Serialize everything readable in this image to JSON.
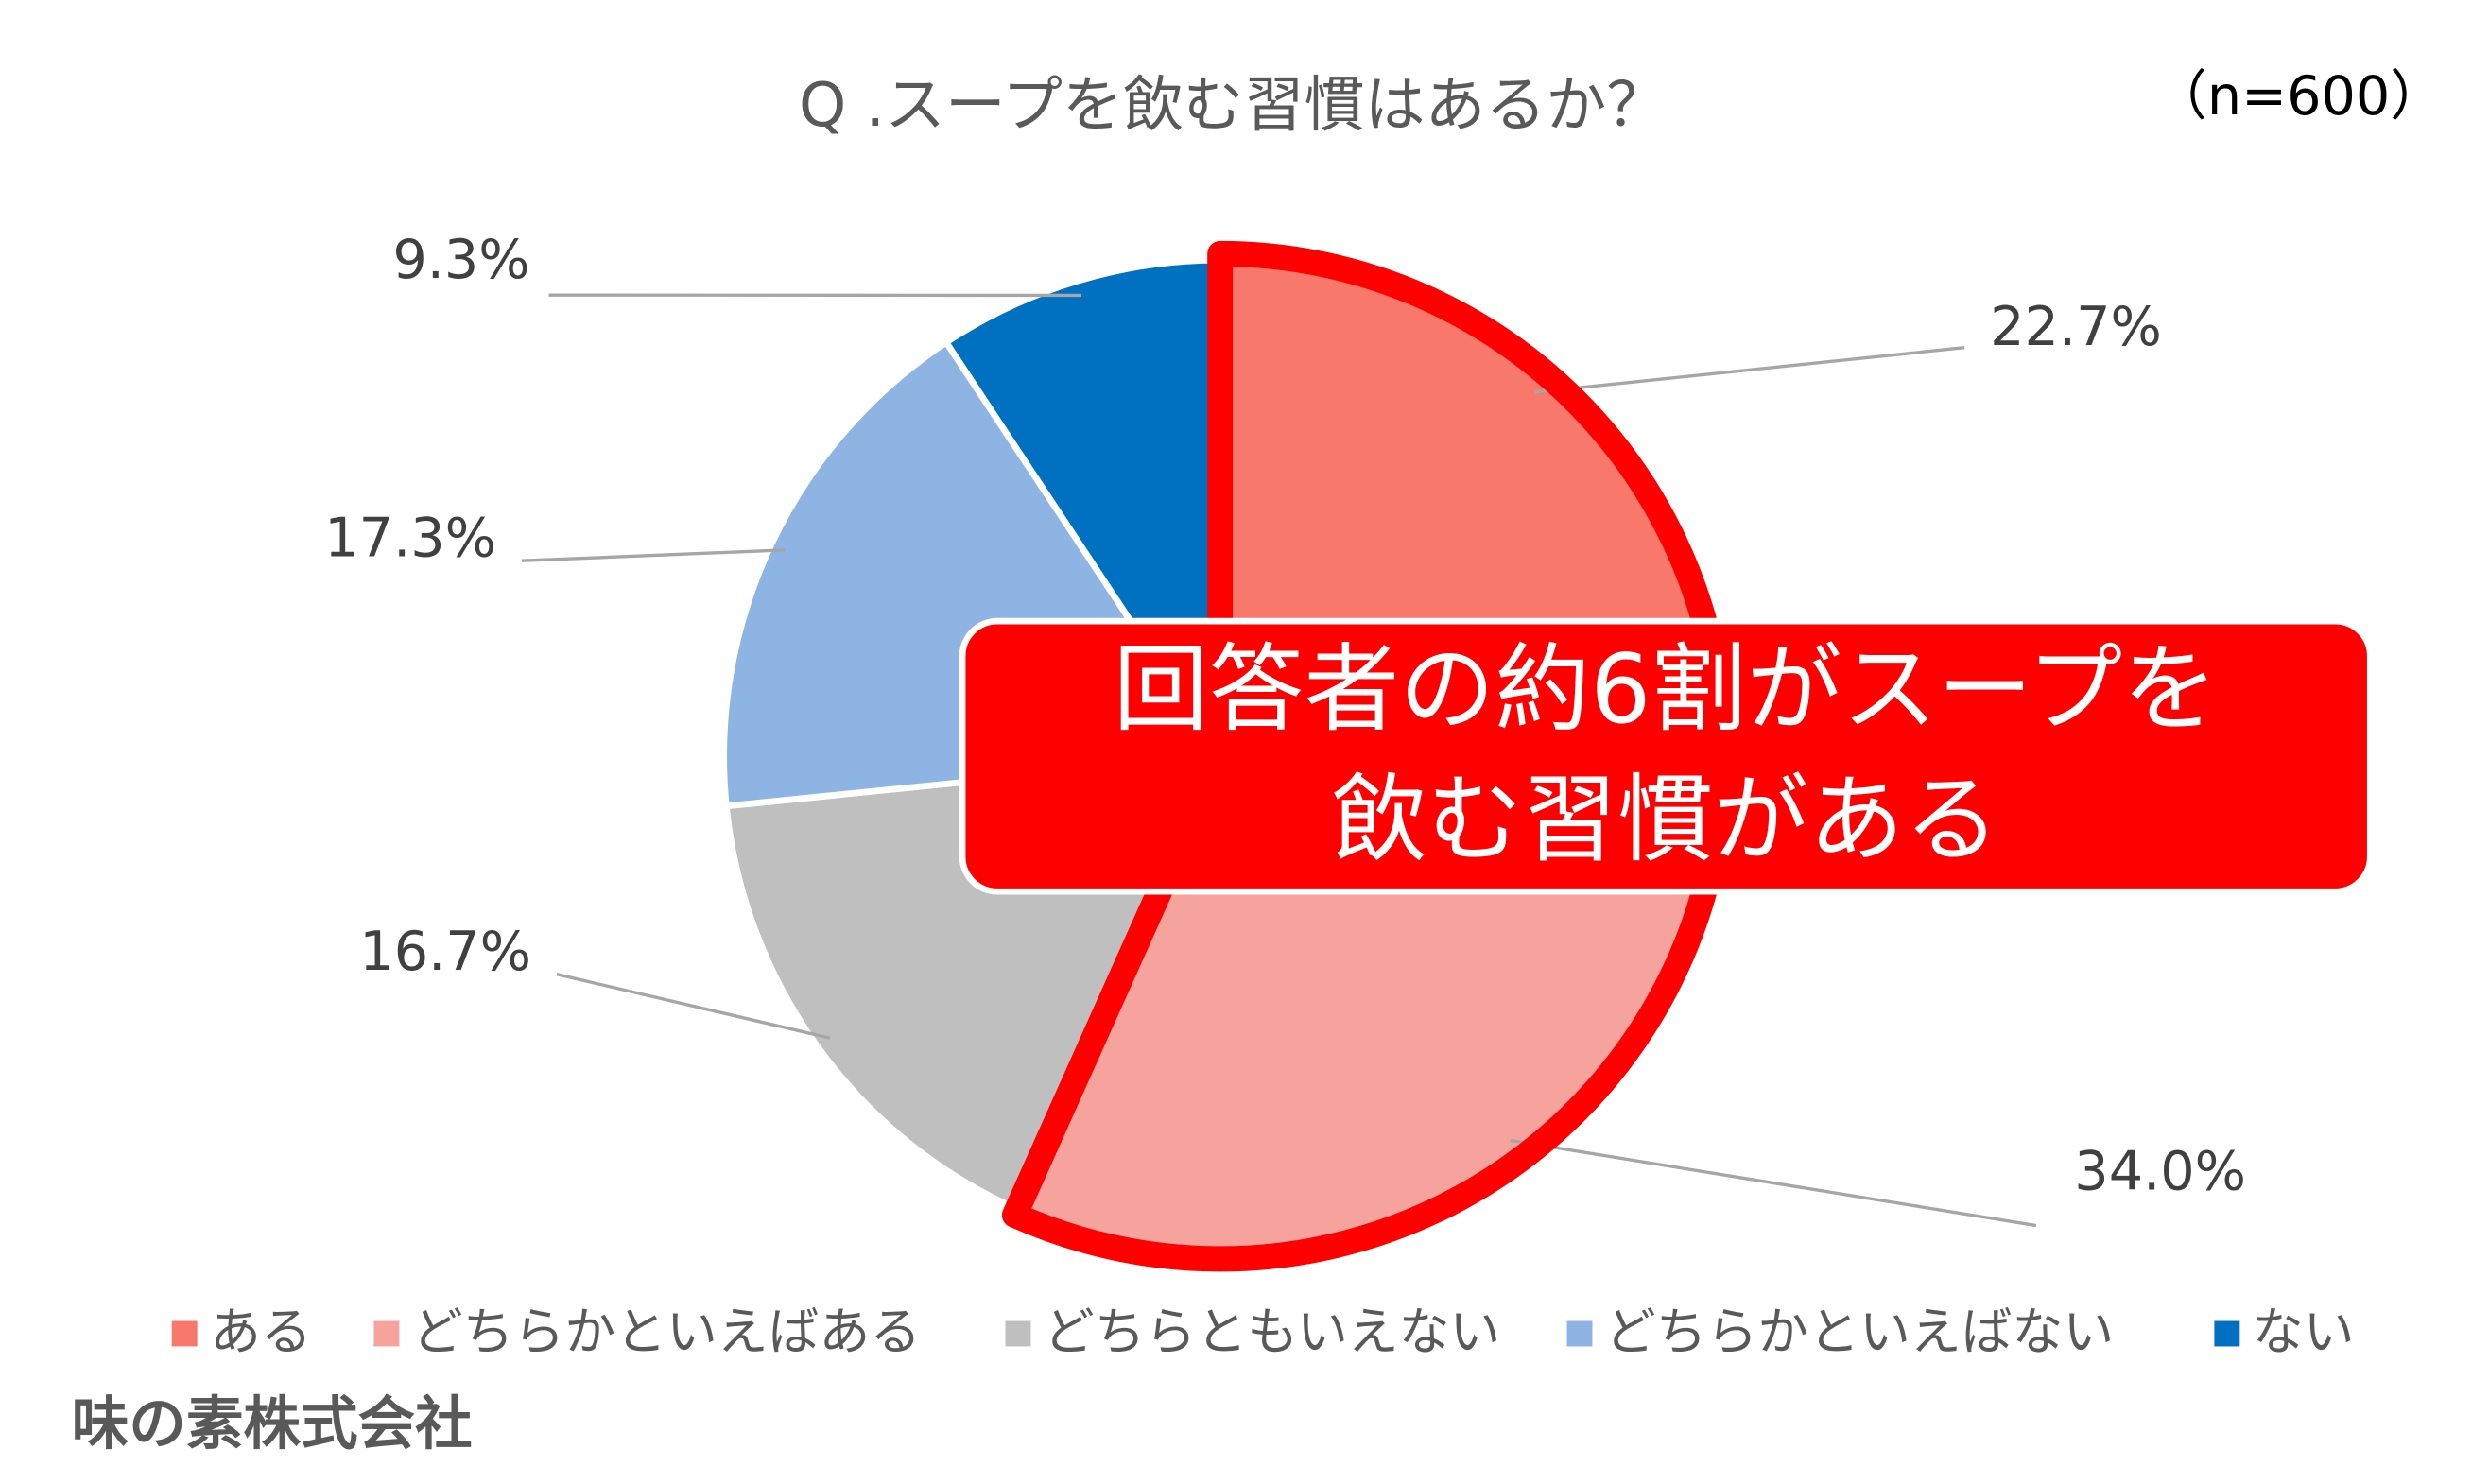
{
  "chart_data": {
    "type": "pie",
    "title": "Q .スープを飲む習慣はあるか？",
    "subtitle": "（n=600）",
    "categories": [
      "ある",
      "どちらかといえばある",
      "どちらともいえない",
      "どちらかといえばない",
      "ない"
    ],
    "values": [
      22.7,
      34.0,
      16.7,
      17.3,
      9.3
    ],
    "value_labels": [
      "22.7%",
      "34.0%",
      "16.7%",
      "17.3%",
      "9.3%"
    ],
    "colors": [
      "#f8786b",
      "#f7a39d",
      "#bfbfbf",
      "#8eb4e3",
      "#0070c0"
    ],
    "annotation": [
      "回答者の約6割がスープを",
      "飲む習慣がある"
    ],
    "source": "味の素株式会社"
  }
}
